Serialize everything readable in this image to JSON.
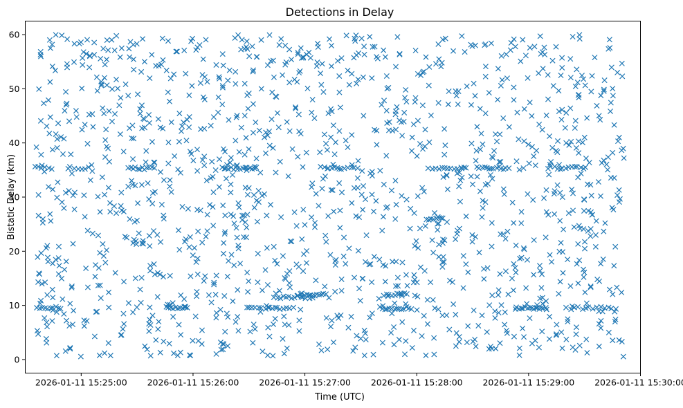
{
  "chart_data": {
    "type": "scatter",
    "title": "Detections in Delay",
    "xlabel": "Time (UTC)",
    "ylabel": "Bistatic Delay (km)",
    "marker": "x",
    "color": "#1f77b4",
    "grid": false,
    "x_unit": "seconds since 2026-01-11 15:25:00 UTC",
    "xlim": [
      -30,
      300
    ],
    "ylim": [
      -2.5,
      62.5
    ],
    "xticks": [
      {
        "value": 0,
        "label": "2026-01-11 15:25:00"
      },
      {
        "value": 60,
        "label": "2026-01-11 15:26:00"
      },
      {
        "value": 120,
        "label": "2026-01-11 15:27:00"
      },
      {
        "value": 180,
        "label": "2026-01-11 15:28:00"
      },
      {
        "value": 240,
        "label": "2026-01-11 15:29:00"
      },
      {
        "value": 300,
        "label": "2026-01-11 15:30:00"
      }
    ],
    "yticks": [
      {
        "value": 0,
        "label": "0"
      },
      {
        "value": 10,
        "label": "10"
      },
      {
        "value": 20,
        "label": "20"
      },
      {
        "value": 30,
        "label": "30"
      },
      {
        "value": 40,
        "label": "40"
      },
      {
        "value": 50,
        "label": "50"
      },
      {
        "value": 60,
        "label": "60"
      }
    ],
    "series": [
      {
        "name": "detections",
        "x_range": [
          -24.5,
          291.5
        ],
        "y_range": [
          0.5,
          60
        ],
        "clutter_points": 1400,
        "tracks": [
          {
            "x0": -24,
            "x1": -10,
            "y": 9.5,
            "n": 10
          },
          {
            "x0": -25,
            "x1": -15,
            "y": 35.4,
            "n": 6
          },
          {
            "x0": -8,
            "x1": 5,
            "y": 35.4,
            "n": 7
          },
          {
            "x0": 25,
            "x1": 40,
            "y": 35.3,
            "n": 12
          },
          {
            "x0": 45,
            "x1": 58,
            "y": 9.5,
            "n": 10
          },
          {
            "x0": 75,
            "x1": 95,
            "y": 35.3,
            "n": 16
          },
          {
            "x0": 88,
            "x1": 115,
            "y": 9.5,
            "n": 16
          },
          {
            "x0": 103,
            "x1": 125,
            "y": 11.5,
            "n": 14
          },
          {
            "x0": 116,
            "x1": 132,
            "y": 12,
            "n": 14
          },
          {
            "x0": 128,
            "x1": 150,
            "y": 35.4,
            "n": 12
          },
          {
            "x0": 160,
            "x1": 178,
            "y": 9.5,
            "n": 14
          },
          {
            "x0": 162,
            "x1": 176,
            "y": 12,
            "n": 10
          },
          {
            "x0": 185,
            "x1": 195,
            "y": 26,
            "n": 8
          },
          {
            "x0": 188,
            "x1": 208,
            "y": 35.4,
            "n": 12
          },
          {
            "x0": 212,
            "x1": 230,
            "y": 35.4,
            "n": 14
          },
          {
            "x0": 233,
            "x1": 250,
            "y": 9.5,
            "n": 14
          },
          {
            "x0": 250,
            "x1": 272,
            "y": 35.4,
            "n": 14
          },
          {
            "x0": 260,
            "x1": 288,
            "y": 9.5,
            "n": 14
          }
        ]
      }
    ]
  }
}
